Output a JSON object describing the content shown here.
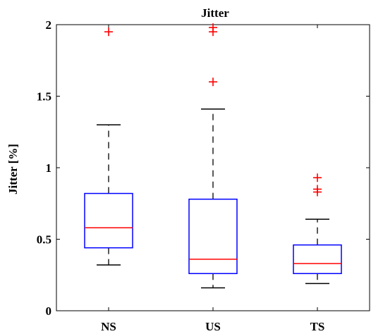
{
  "chart_data": {
    "type": "box",
    "title": "Jitter",
    "xlabel": "",
    "ylabel": "Jitter [%]",
    "ylim": [
      0,
      2
    ],
    "yticks": [
      0,
      0.5,
      1,
      1.5,
      2
    ],
    "ytick_labels": [
      "0",
      "0.5",
      "1",
      "1.5",
      "2"
    ],
    "categories": [
      "NS",
      "US",
      "TS"
    ],
    "boxes": [
      {
        "category": "NS",
        "whisker_low": 0.32,
        "q1": 0.44,
        "median": 0.58,
        "q3": 0.82,
        "whisker_high": 1.3,
        "outliers": [
          1.95
        ]
      },
      {
        "category": "US",
        "whisker_low": 0.16,
        "q1": 0.26,
        "median": 0.36,
        "q3": 0.78,
        "whisker_high": 1.41,
        "outliers": [
          1.6,
          1.95,
          1.98
        ]
      },
      {
        "category": "TS",
        "whisker_low": 0.19,
        "q1": 0.26,
        "median": 0.33,
        "q3": 0.46,
        "whisker_high": 0.64,
        "outliers": [
          0.83,
          0.85,
          0.93
        ]
      }
    ],
    "grid": false,
    "colors": {
      "box": "#0000ff",
      "median": "#ff0000",
      "whisker": "#000000",
      "outlier": "#ff0000"
    }
  }
}
